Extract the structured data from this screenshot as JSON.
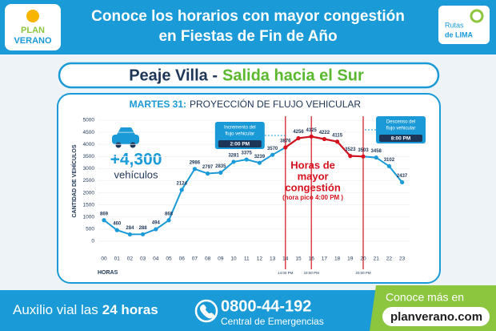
{
  "header": {
    "logo_left": [
      "PLAN",
      "VERANO"
    ],
    "title_lines": [
      "Conoce los horarios con mayor congestión",
      "en Fiestas de Fin de Año"
    ],
    "logo_right": [
      "Rutas",
      "de LIMA"
    ]
  },
  "subheader": {
    "part1": "Peaje Villa -",
    "part2": "Salida hacia el Sur"
  },
  "chart_data": {
    "type": "line",
    "title_prefix": "MARTES 31:",
    "title": "PROYECCIÓN DE FLUJO VEHICULAR",
    "y_label": "CANTIDAD DE VEHÍCULOS",
    "x_label": "HORAS",
    "categories": [
      "00",
      "01",
      "02",
      "03",
      "04",
      "05",
      "06",
      "07",
      "08",
      "09",
      "10",
      "11",
      "12",
      "13",
      "14",
      "15",
      "16",
      "17",
      "18",
      "19",
      "20",
      "21",
      "22",
      "23"
    ],
    "values": [
      869,
      460,
      284,
      288,
      494,
      868,
      2124,
      2986,
      2797,
      2835,
      3281,
      3375,
      3239,
      3570,
      3876,
      4256,
      4325,
      4222,
      4115,
      3523,
      3503,
      3458,
      3102,
      2437
    ],
    "color": "#1a9ad6",
    "highlight_color": "#d6121e",
    "ylim": [
      0,
      5000
    ],
    "yticks": [
      0,
      500,
      1000,
      1500,
      2000,
      2500,
      3000,
      3500,
      4000,
      4500,
      5000
    ],
    "grid": true,
    "vlines": [
      {
        "x": "14",
        "label": "14:00 PM"
      },
      {
        "x": "16",
        "label": "16:00 PM"
      },
      {
        "x": "20",
        "label": "20:00 PM"
      }
    ],
    "callouts": [
      {
        "x": "14",
        "lines": [
          "Incremento del",
          "flujo vehicular"
        ],
        "time": "2:00 PM"
      },
      {
        "x": "20",
        "lines": [
          "Descenso del",
          "flujo vehicular"
        ],
        "time": "8:00 PM"
      }
    ],
    "congestion": {
      "lines": [
        "Horas de",
        "mayor",
        "congestión"
      ],
      "note": "(hora pico 4:00 PM )"
    },
    "badge": {
      "value_text": "+4,300",
      "unit": "vehículos"
    }
  },
  "footer": {
    "left": "Auxilio vial las",
    "left_bold": "24 horas",
    "phone": "0800-44-192",
    "phone_sub": "Central de Emergencias",
    "right_top": "Conoce más en",
    "url": "planverano.com"
  }
}
